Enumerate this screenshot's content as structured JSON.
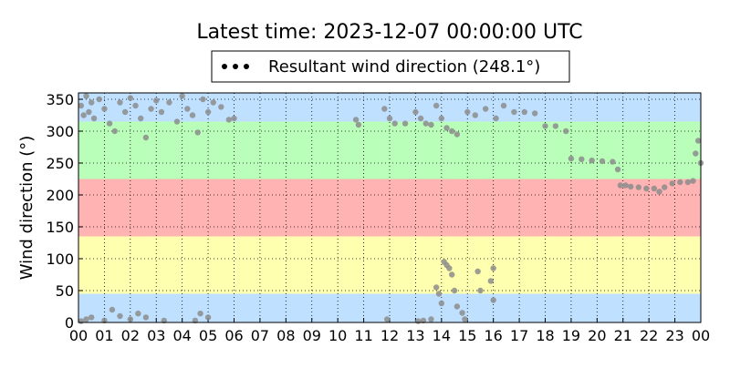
{
  "chart_data": {
    "type": "scatter",
    "title": "Latest time: 2023-12-07 00:00:00 UTC",
    "y_label": "Wind direction (°)",
    "legend": "upper center",
    "grid": true,
    "xlim": [
      0,
      24
    ],
    "ylim": [
      0,
      360
    ],
    "xticks": [
      {
        "value": 0,
        "label": "00"
      },
      {
        "value": 1,
        "label": "01"
      },
      {
        "value": 2,
        "label": "02"
      },
      {
        "value": 3,
        "label": "03"
      },
      {
        "value": 4,
        "label": "04"
      },
      {
        "value": 5,
        "label": "05"
      },
      {
        "value": 6,
        "label": "06"
      },
      {
        "value": 7,
        "label": "07"
      },
      {
        "value": 8,
        "label": "08"
      },
      {
        "value": 9,
        "label": "09"
      },
      {
        "value": 10,
        "label": "10"
      },
      {
        "value": 11,
        "label": "11"
      },
      {
        "value": 12,
        "label": "12"
      },
      {
        "value": 13,
        "label": "13"
      },
      {
        "value": 14,
        "label": "14"
      },
      {
        "value": 15,
        "label": "15"
      },
      {
        "value": 16,
        "label": "16"
      },
      {
        "value": 17,
        "label": "17"
      },
      {
        "value": 18,
        "label": "18"
      },
      {
        "value": 19,
        "label": "19"
      },
      {
        "value": 20,
        "label": "20"
      },
      {
        "value": 21,
        "label": "21"
      },
      {
        "value": 22,
        "label": "22"
      },
      {
        "value": 23,
        "label": "23"
      },
      {
        "value": 24,
        "label": "00"
      }
    ],
    "yticks": [
      0,
      50,
      100,
      150,
      200,
      250,
      300,
      350
    ],
    "bands": [
      {
        "from": 0,
        "to": 45,
        "color": "#bfe0ff"
      },
      {
        "from": 45,
        "to": 135,
        "color": "#ffffb0"
      },
      {
        "from": 135,
        "to": 225,
        "color": "#ffb3b3"
      },
      {
        "from": 225,
        "to": 315,
        "color": "#b9ffb9"
      },
      {
        "from": 315,
        "to": 360,
        "color": "#bfe0ff"
      }
    ],
    "series": [
      {
        "name": "Resultant wind direction (248.1°)",
        "color": "#8c8c8c",
        "x": [
          0.1,
          0.2,
          0.3,
          0.4,
          0.5,
          0.6,
          0.8,
          1.0,
          1.2,
          1.4,
          1.6,
          1.8,
          2.0,
          2.2,
          2.4,
          2.6,
          2.8,
          3.0,
          3.2,
          3.5,
          3.8,
          4.0,
          4.2,
          4.4,
          4.6,
          4.8,
          5.0,
          5.2,
          5.5,
          5.8,
          6.0,
          0.1,
          0.3,
          0.5,
          1.0,
          1.3,
          1.6,
          2.0,
          2.3,
          2.6,
          3.3,
          4.5,
          4.7,
          5.0,
          10.7,
          10.8,
          11.8,
          12.0,
          12.2,
          12.6,
          13.0,
          13.2,
          13.4,
          13.6,
          13.8,
          14.0,
          14.2,
          14.4,
          14.6,
          11.9,
          13.1,
          13.3,
          13.6,
          13.8,
          13.9,
          14.0,
          14.1,
          14.2,
          14.3,
          14.4,
          14.5,
          14.6,
          14.8,
          14.9,
          15.4,
          15.5,
          15.9,
          16.0,
          16.0,
          15.0,
          15.3,
          15.7,
          16.1,
          16.4,
          16.8,
          17.2,
          17.6,
          18.0,
          18.4,
          18.8,
          19.0,
          19.4,
          19.8,
          20.2,
          20.6,
          20.8,
          20.9,
          21.1,
          21.3,
          21.6,
          21.9,
          22.2,
          22.4,
          22.6,
          22.9,
          23.2,
          23.5,
          23.7,
          23.8,
          23.9,
          24.0
        ],
        "values": [
          340,
          325,
          355,
          330,
          345,
          320,
          350,
          335,
          312,
          300,
          345,
          330,
          352,
          340,
          320,
          290,
          335,
          348,
          330,
          345,
          315,
          355,
          335,
          325,
          298,
          350,
          330,
          345,
          338,
          318,
          320,
          2,
          5,
          8,
          3,
          20,
          10,
          5,
          14,
          8,
          3,
          3,
          14,
          8,
          318,
          310,
          335,
          320,
          312,
          312,
          330,
          320,
          312,
          310,
          340,
          320,
          305,
          300,
          295,
          5,
          2,
          3,
          5,
          55,
          45,
          30,
          95,
          90,
          85,
          75,
          50,
          25,
          15,
          5,
          80,
          50,
          65,
          85,
          35,
          330,
          325,
          335,
          320,
          340,
          330,
          330,
          328,
          308,
          308,
          300,
          257,
          256,
          254,
          253,
          252,
          240,
          215,
          215,
          213,
          212,
          210,
          210,
          205,
          212,
          218,
          220,
          220,
          222,
          265,
          285,
          250
        ]
      }
    ]
  }
}
